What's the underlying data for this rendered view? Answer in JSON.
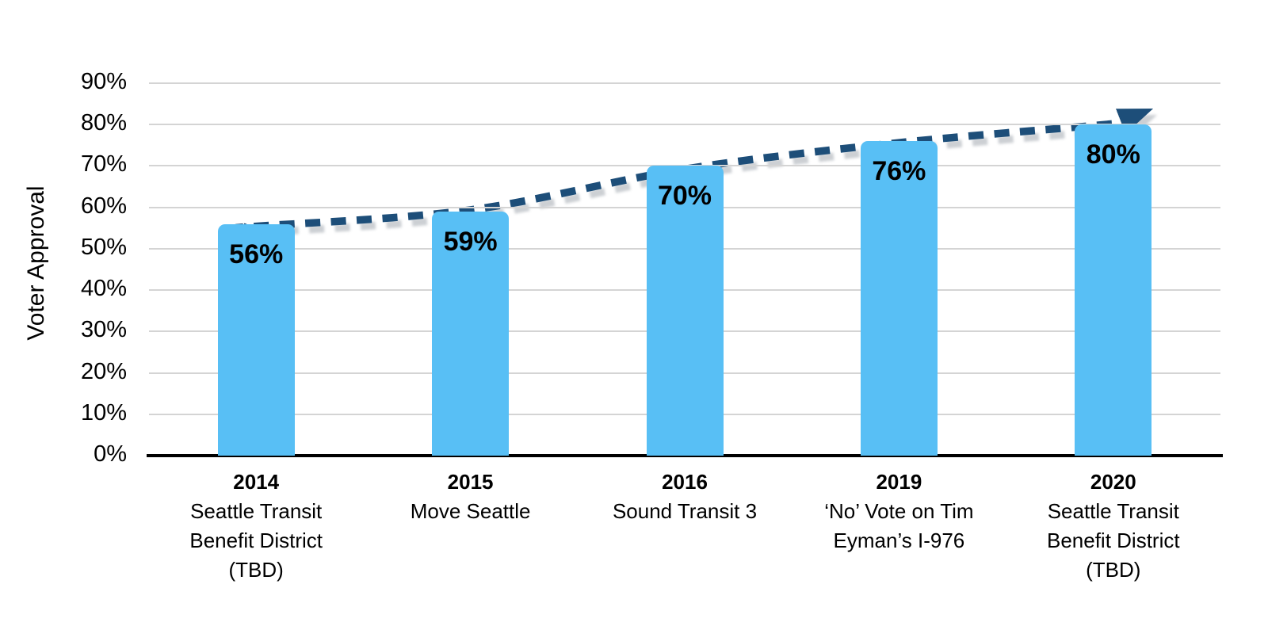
{
  "chart_data": {
    "type": "bar",
    "title": "",
    "xlabel": "",
    "ylabel": "Voter Approval",
    "ylim": [
      0,
      90
    ],
    "ytick_step": 10,
    "ytick_labels": [
      "0%",
      "10%",
      "20%",
      "30%",
      "40%",
      "50%",
      "60%",
      "70%",
      "80%",
      "90%"
    ],
    "grid": true,
    "legend_position": "none",
    "categories": [
      {
        "year": "2014",
        "lines": [
          "Seattle Transit",
          "Benefit District",
          "(TBD)"
        ]
      },
      {
        "year": "2015",
        "lines": [
          "Move Seattle"
        ]
      },
      {
        "year": "2016",
        "lines": [
          "Sound Transit 3"
        ]
      },
      {
        "year": "2019",
        "lines": [
          "‘No’ Vote on Tim",
          "Eyman’s I-976"
        ]
      },
      {
        "year": "2020",
        "lines": [
          "Seattle Transit",
          "Benefit District",
          "(TBD)"
        ]
      }
    ],
    "values": [
      56,
      59,
      70,
      76,
      80
    ],
    "value_labels": [
      "56%",
      "59%",
      "70%",
      "76%",
      "80%"
    ],
    "trend_line": {
      "type": "dashed-arrow",
      "description": "upward dashed trend arrow passing through the bar tops",
      "values": [
        56,
        59,
        70,
        76,
        80
      ]
    }
  },
  "colors": {
    "bar": "#58BFF5",
    "trend": "#1D4E79",
    "trend_shadow": "#A3A9B0",
    "grid": "#D4D4D4",
    "axis": "#000000",
    "text": "#000000",
    "background": "#FFFFFF"
  }
}
